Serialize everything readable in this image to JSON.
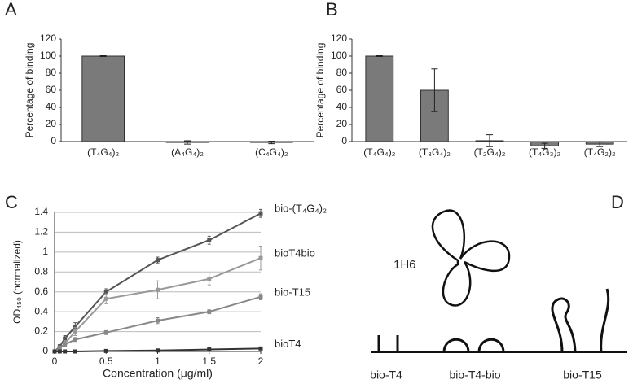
{
  "panels": [
    "A",
    "B",
    "C",
    "D"
  ],
  "chart_data": [
    {
      "type": "bar",
      "y_label": "Percentage of binding",
      "categories": [
        "(T₄G₄)₂",
        "(A₄G₄)₂",
        "(C₄G₄)₂"
      ],
      "values": [
        100,
        -1,
        -1
      ],
      "errors": [
        0.5,
        2,
        1.5
      ],
      "color": "#7a7a7a",
      "ylim": [
        0,
        120
      ],
      "yticks": [
        0,
        20,
        40,
        60,
        80,
        100,
        120
      ],
      "grid": false
    },
    {
      "type": "bar",
      "y_label": "Percentage of binding",
      "categories": [
        "(T₄G₄)₂",
        "(T₃G₄)₂",
        "(T₂G₄)₂",
        "(T₄G₃)₂",
        "(T₄G₂)₂"
      ],
      "values": [
        100,
        60,
        1,
        -5,
        -3
      ],
      "errors": [
        0.5,
        25,
        7,
        3,
        3
      ],
      "color": "#7a7a7a",
      "ylim": [
        0,
        120
      ],
      "yticks": [
        0,
        20,
        40,
        60,
        80,
        100,
        120
      ],
      "grid": false
    },
    {
      "type": "line",
      "y_label": "OD₄₅₀ (normalized)",
      "x_label": "Concentration (μg/ml)",
      "x": [
        0,
        0.05,
        0.1,
        0.2,
        0.5,
        1,
        1.5,
        2
      ],
      "xlim": [
        0,
        2
      ],
      "xticks": [
        0,
        0.5,
        1,
        1.5,
        2
      ],
      "ylim": [
        0,
        1.4
      ],
      "yticks": [
        0,
        0.2,
        0.4,
        0.6,
        0.8,
        1,
        1.2,
        1.4
      ],
      "grid": true,
      "series": [
        {
          "name": "bio-(T₄G₄)₂",
          "color": "#555555",
          "values": [
            0,
            0.05,
            0.13,
            0.25,
            0.6,
            0.92,
            1.12,
            1.39
          ],
          "errors": [
            0,
            0.02,
            0.03,
            0.04,
            0.03,
            0.03,
            0.04,
            0.04
          ]
        },
        {
          "name": "bioT4bio",
          "color": "#999999",
          "values": [
            0,
            0.03,
            0.08,
            0.2,
            0.53,
            0.62,
            0.73,
            0.94
          ],
          "errors": [
            0,
            0.02,
            0.03,
            0.04,
            0.05,
            0.09,
            0.06,
            0.12
          ]
        },
        {
          "name": "bio-T15",
          "color": "#888888",
          "values": [
            0,
            0.04,
            0.07,
            0.12,
            0.19,
            0.31,
            0.4,
            0.55
          ],
          "errors": [
            0,
            0.01,
            0.02,
            0.02,
            0.02,
            0.03,
            0.02,
            0.03
          ]
        },
        {
          "name": "bioT4",
          "color": "#333333",
          "values": [
            0,
            0,
            0,
            0,
            0.005,
            0.01,
            0.02,
            0.03
          ],
          "errors": [
            0,
            0,
            0,
            0,
            0,
            0,
            0,
            0
          ]
        }
      ]
    }
  ],
  "diagram": {
    "protein": "1H6",
    "constructs": [
      "bio-T4",
      "bio-T4-bio",
      "bio-T15"
    ]
  }
}
